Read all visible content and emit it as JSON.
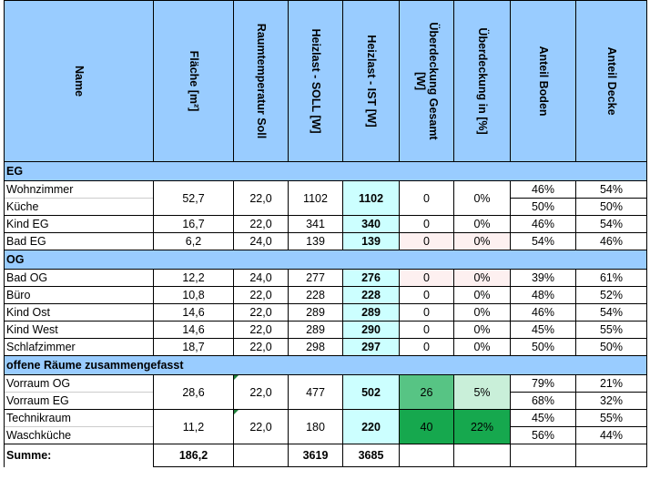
{
  "headers": [
    "Name",
    "Fläche [m²]",
    "Raumtemperatur Soll",
    "Heizlast - SOLL [W]",
    "Heizlast - IST [W]",
    "Überdeckung Gesamt [W]",
    "Überdeckung in [%]",
    "Anteil Boden",
    "Anteil Decke"
  ],
  "sections": {
    "eg": "EG",
    "og": "OG",
    "offen": "offene Räume zusammengefasst"
  },
  "eg": {
    "group1": {
      "names": [
        "Wohnzimmer",
        "Küche"
      ],
      "flaeche": "52,7",
      "temp": "22,0",
      "soll": "1102",
      "ist": "1102",
      "ueb_w": "0",
      "ueb_pct": "0%",
      "boden": [
        "46%",
        "50%"
      ],
      "decke": [
        "54%",
        "50%"
      ]
    },
    "rows": [
      {
        "name": "Kind EG",
        "flaeche": "16,7",
        "temp": "22,0",
        "soll": "341",
        "ist": "340",
        "ueb_w": "0",
        "ueb_pct": "0%",
        "boden": "46%",
        "decke": "54%"
      },
      {
        "name": "Bad EG",
        "flaeche": "6,2",
        "temp": "24,0",
        "soll": "139",
        "ist": "139",
        "ueb_w": "0",
        "ueb_pct": "0%",
        "boden": "54%",
        "decke": "46%"
      }
    ]
  },
  "og": {
    "rows": [
      {
        "name": "Bad OG",
        "flaeche": "12,2",
        "temp": "24,0",
        "soll": "277",
        "ist": "276",
        "ueb_w": "0",
        "ueb_pct": "0%",
        "boden": "39%",
        "decke": "61%"
      },
      {
        "name": "Büro",
        "flaeche": "10,8",
        "temp": "22,0",
        "soll": "228",
        "ist": "228",
        "ueb_w": "0",
        "ueb_pct": "0%",
        "boden": "48%",
        "decke": "52%"
      },
      {
        "name": "Kind Ost",
        "flaeche": "14,6",
        "temp": "22,0",
        "soll": "289",
        "ist": "289",
        "ueb_w": "0",
        "ueb_pct": "0%",
        "boden": "46%",
        "decke": "54%"
      },
      {
        "name": "Kind West",
        "flaeche": "14,6",
        "temp": "22,0",
        "soll": "289",
        "ist": "290",
        "ueb_w": "0",
        "ueb_pct": "0%",
        "boden": "45%",
        "decke": "55%"
      },
      {
        "name": "Schlafzimmer",
        "flaeche": "18,7",
        "temp": "22,0",
        "soll": "298",
        "ist": "297",
        "ueb_w": "0",
        "ueb_pct": "0%",
        "boden": "50%",
        "decke": "50%"
      }
    ]
  },
  "offen": {
    "group1": {
      "names": [
        "Vorraum OG",
        "Vorraum EG"
      ],
      "flaeche": "28,6",
      "temp": "22,0",
      "soll": "477",
      "ist": "502",
      "ueb_w": "26",
      "ueb_pct": "5%",
      "boden": [
        "79%",
        "68%"
      ],
      "decke": [
        "21%",
        "32%"
      ]
    },
    "group2": {
      "names": [
        "Technikraum",
        "Waschküche"
      ],
      "flaeche": "11,2",
      "temp": "22,0",
      "soll": "180",
      "ist": "220",
      "ueb_w": "40",
      "ueb_pct": "22%",
      "boden": [
        "45%",
        "56%"
      ],
      "decke": [
        "55%",
        "44%"
      ]
    }
  },
  "summe": {
    "label": "Summe:",
    "flaeche": "186,2",
    "soll": "3619",
    "ist": "3685"
  },
  "colors": {
    "header": "#99ccff",
    "ist": "#ccffff",
    "green_dark": "#16a84e",
    "green_mid": "#57c484",
    "green_light": "#c9efd9",
    "pink": "#fdf0f0"
  }
}
